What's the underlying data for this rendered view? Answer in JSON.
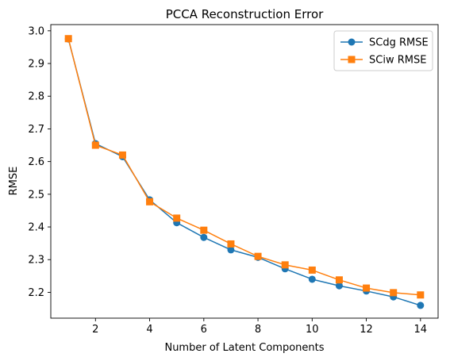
{
  "chart_data": {
    "type": "line",
    "title": "PCCA Reconstruction Error",
    "xlabel": "Number of Latent Components",
    "ylabel": "RMSE",
    "x": [
      1,
      2,
      3,
      4,
      5,
      6,
      7,
      8,
      9,
      10,
      11,
      12,
      13,
      14
    ],
    "xlim": [
      0.35,
      14.65
    ],
    "ylim": [
      2.121,
      3.019
    ],
    "xticks": [
      2,
      4,
      6,
      8,
      10,
      12,
      14
    ],
    "yticks": [
      2.2,
      2.3,
      2.4,
      2.5,
      2.6,
      2.7,
      2.8,
      2.9,
      3.0
    ],
    "ytick_labels": [
      "2.2",
      "2.3",
      "2.4",
      "2.5",
      "2.6",
      "2.7",
      "2.8",
      "2.9",
      "3.0"
    ],
    "grid": false,
    "legend_position": "top-right",
    "series": [
      {
        "name": "SCdg RMSE",
        "color": "#1f77b4",
        "marker": "circle",
        "values": [
          2.975,
          2.655,
          2.615,
          2.483,
          2.413,
          2.368,
          2.33,
          2.307,
          2.272,
          2.24,
          2.22,
          2.204,
          2.186,
          2.16
        ]
      },
      {
        "name": "SCiw RMSE",
        "color": "#ff7f0e",
        "marker": "square",
        "values": [
          2.976,
          2.65,
          2.62,
          2.477,
          2.427,
          2.39,
          2.348,
          2.31,
          2.284,
          2.268,
          2.238,
          2.213,
          2.199,
          2.192
        ]
      }
    ]
  }
}
